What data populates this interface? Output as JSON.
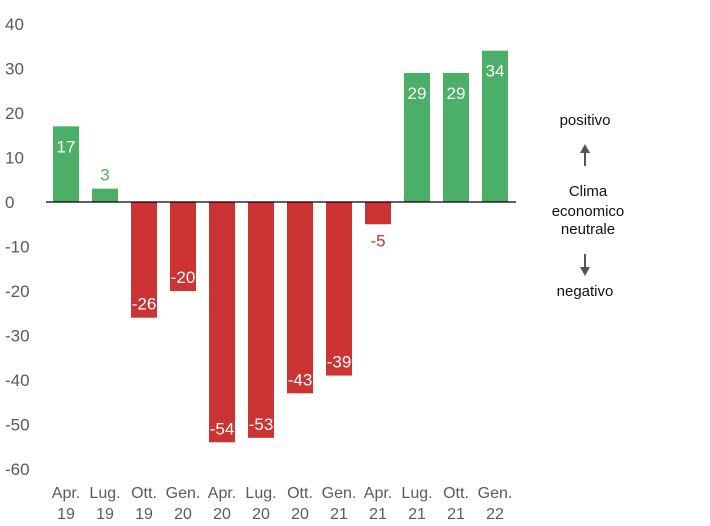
{
  "chart_data": {
    "type": "bar",
    "categories": [
      [
        "Apr.",
        "19"
      ],
      [
        "Lug.",
        "19"
      ],
      [
        "Ott.",
        "19"
      ],
      [
        "Gen.",
        "20"
      ],
      [
        "Apr.",
        "20"
      ],
      [
        "Lug.",
        "20"
      ],
      [
        "Ott.",
        "20"
      ],
      [
        "Gen.",
        "21"
      ],
      [
        "Apr.",
        "21"
      ],
      [
        "Lug.",
        "21"
      ],
      [
        "Ott.",
        "21"
      ],
      [
        "Gen.",
        "22"
      ]
    ],
    "values": [
      17,
      3,
      -26,
      -20,
      -54,
      -53,
      -43,
      -39,
      -5,
      29,
      29,
      34
    ],
    "ylim": [
      -60,
      40
    ],
    "yticks": [
      40,
      30,
      20,
      10,
      0,
      -10,
      -20,
      -30,
      -40,
      -50,
      -60
    ],
    "grid": false,
    "colors": {
      "positive": "#4caf68",
      "negative": "#cc3333",
      "label_inside": "#ffffff",
      "axis_text": "#5a5a5a",
      "arrow": "#555555"
    }
  },
  "legend": {
    "top_text": "positivo",
    "middle_lines": [
      "Clima",
      "economico",
      "neutrale"
    ],
    "bottom_text": "negativo",
    "up_icon": "arrow-up",
    "down_icon": "arrow-down"
  }
}
